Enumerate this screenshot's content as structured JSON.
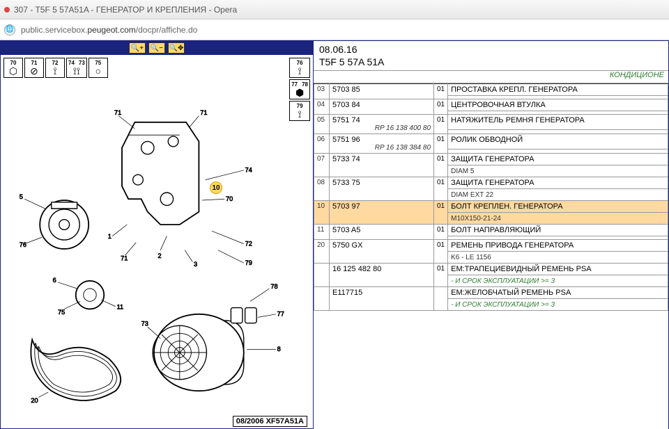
{
  "titlebar": {
    "text": "307 - T5F 5 57A51A - ГЕНЕРАТОР И КРЕПЛЕНИЯ - Opera"
  },
  "address": {
    "pre": "public.servicebox.",
    "bold": "peugeot.com",
    "post": "/docpr/affiche.do"
  },
  "toolbar": {
    "zoom_in": "+",
    "zoom_out": "−",
    "move": "✥"
  },
  "thumbs_top": [
    {
      "label": "70",
      "glyph": "⬡"
    },
    {
      "label": "71",
      "glyph": "⊘"
    },
    {
      "label": "72",
      "glyph": "⟟"
    },
    {
      "label2": "73",
      "label": "74",
      "glyph": "⟟⟟"
    },
    {
      "label": "75",
      "glyph": "○"
    }
  ],
  "thumbs_right": [
    {
      "label": "76",
      "glyph": "⟟"
    },
    {
      "label": "77",
      "label2": "78",
      "glyph": "⬢"
    },
    {
      "label": "79",
      "glyph": "⟟"
    }
  ],
  "diagram_footer": "08/2006  XF57A51A",
  "callout_hl": "10",
  "rp": {
    "date": "08.06.16",
    "code": "T5F 5 57A 51A",
    "cond": "КОНДИЦИОНЕ"
  },
  "rows": [
    {
      "idx": "03",
      "code": "5703 85",
      "qty": "01",
      "desc": "ПРОСТАВКА КРЕПЛ. ГЕНЕРАТОРА"
    },
    {
      "idx": "04",
      "code": "5703 84",
      "qty": "01",
      "desc": "ЦЕНТРОВОЧНАЯ ВТУЛКА"
    },
    {
      "idx": "05",
      "code": "5751 74",
      "ref": "RP 16 138 400 80",
      "qty": "01",
      "desc": "НАТЯЖИТЕЛЬ РЕМНЯ ГЕНЕРАТОРА"
    },
    {
      "idx": "06",
      "code": "5751 96",
      "ref": "RP 16 138 384 80",
      "qty": "01",
      "desc": "РОЛИК ОБВОДНОЙ"
    },
    {
      "idx": "07",
      "code": "5733 74",
      "qty": "01",
      "desc": "ЗАЩИТА ГЕНЕРАТОРА",
      "sub": "DIAM 5"
    },
    {
      "idx": "08",
      "code": "5733 75",
      "qty": "01",
      "desc": "ЗАЩИТА ГЕНЕРАТОРА",
      "sub": "DIAM EXT 22"
    },
    {
      "idx": "10",
      "code": "5703 97",
      "qty": "01",
      "desc": "БОЛТ КРЕПЛЕН. ГЕНЕРАТОРА",
      "sub": "M10X150-21-24",
      "hl": true
    },
    {
      "idx": "11",
      "code": "5703 A5",
      "qty": "01",
      "desc": "БОЛТ НАПРАВЛЯЮЩИЙ"
    },
    {
      "idx": "20",
      "code": "5750 GX",
      "qty": "01",
      "desc": "РЕМЕНЬ ПРИВОДА ГЕНЕРАТОРА",
      "sub": "K6 - LE 1156"
    },
    {
      "idx": "",
      "code": "16 125 482 80",
      "qty": "01",
      "desc": "EM:ТРАПЕЦИЕВИДНЫЙ РЕМЕНЬ PSA",
      "green": "- И СРОК ЭКСПЛУАТАЦИИ >= 3"
    },
    {
      "idx": "",
      "code": "E117715",
      "qty": "",
      "desc": "EM:ЖЕЛОБЧАТЫЙ РЕМЕНЬ PSA",
      "green": "- И СРОК ЭКСПЛУАТАЦИИ >= 3"
    }
  ]
}
